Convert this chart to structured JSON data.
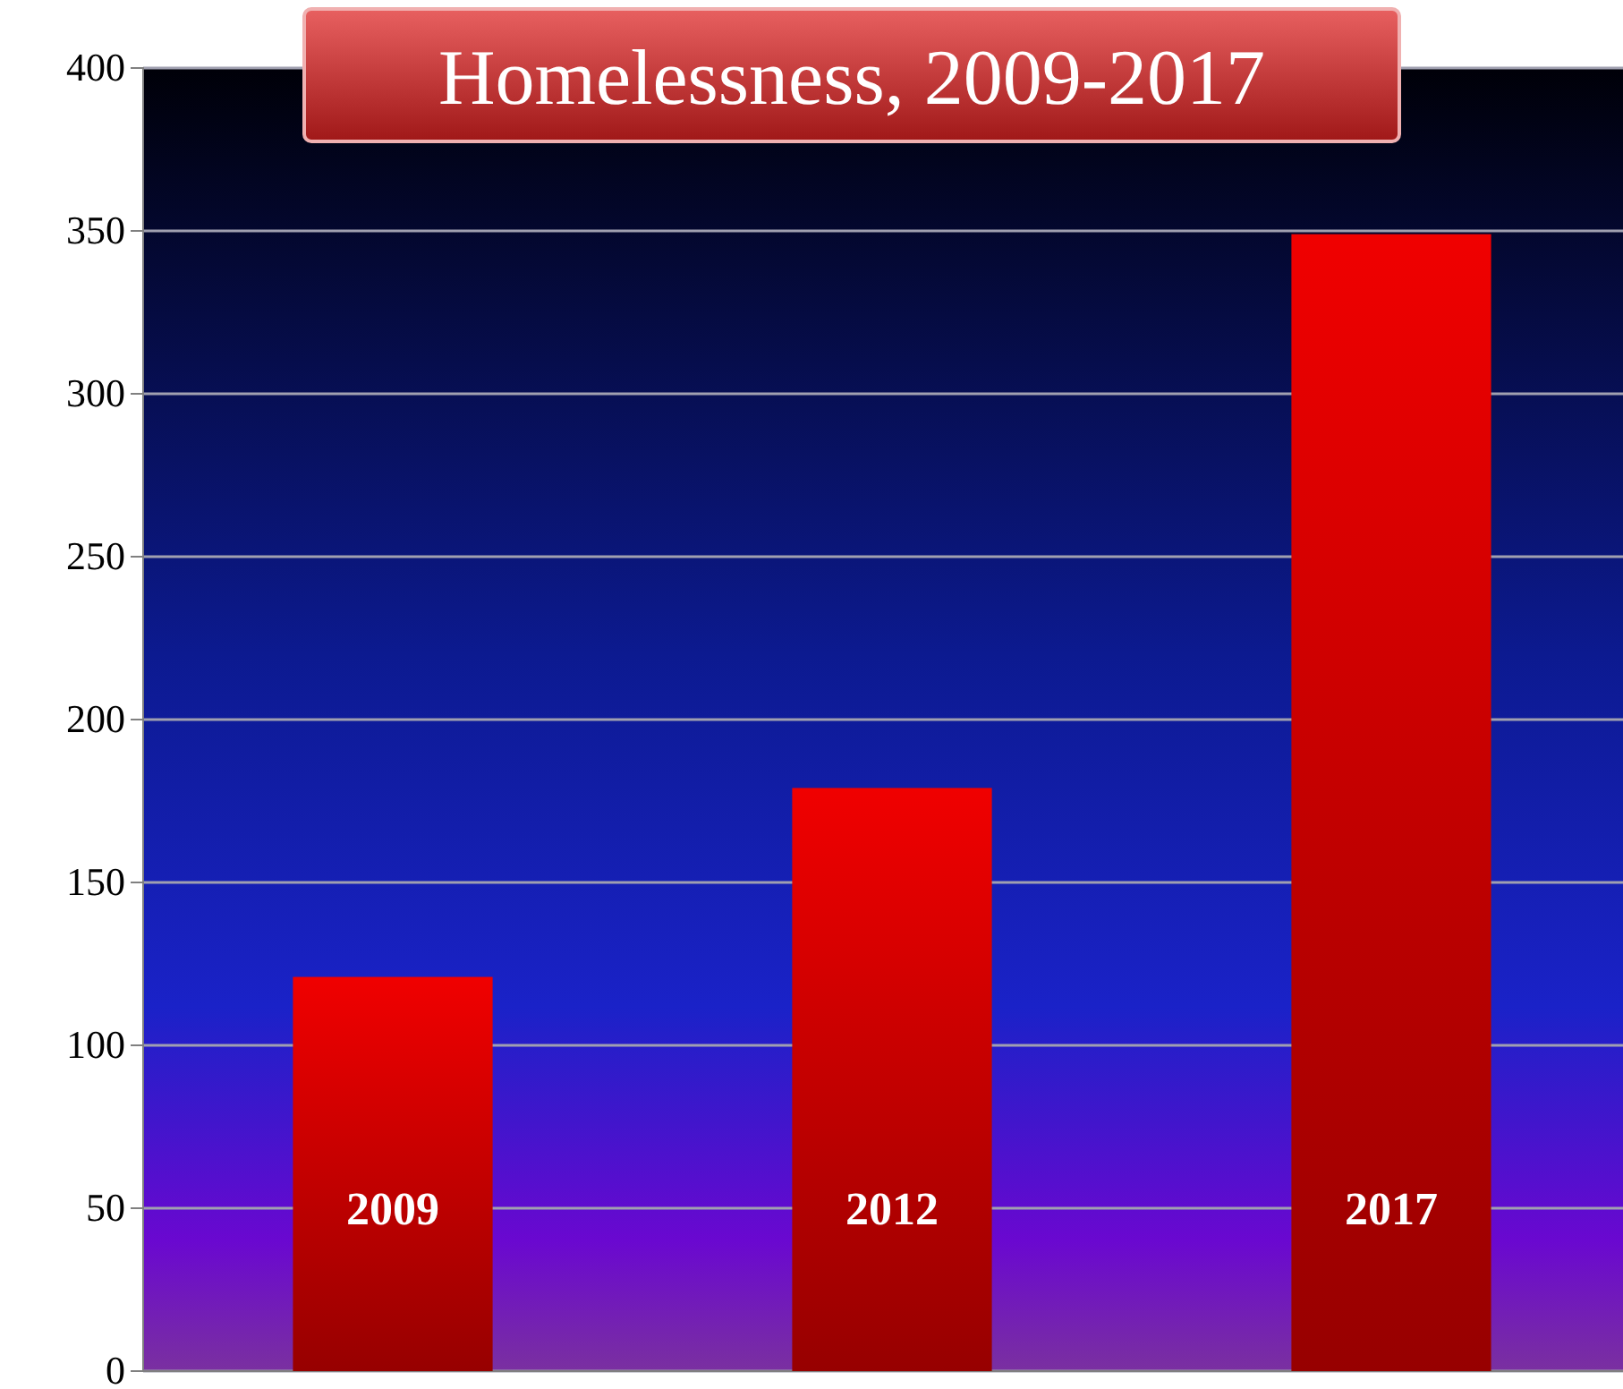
{
  "chart_data": {
    "type": "bar",
    "title": "Homelessness, 2009-2017",
    "categories": [
      "2009",
      "2012",
      "2017"
    ],
    "values": [
      121,
      179,
      349
    ],
    "color": "#f00000",
    "ylim": [
      0,
      400
    ],
    "yticks": [
      0,
      50,
      100,
      150,
      200,
      250,
      300,
      350,
      400
    ],
    "grid": "y"
  }
}
